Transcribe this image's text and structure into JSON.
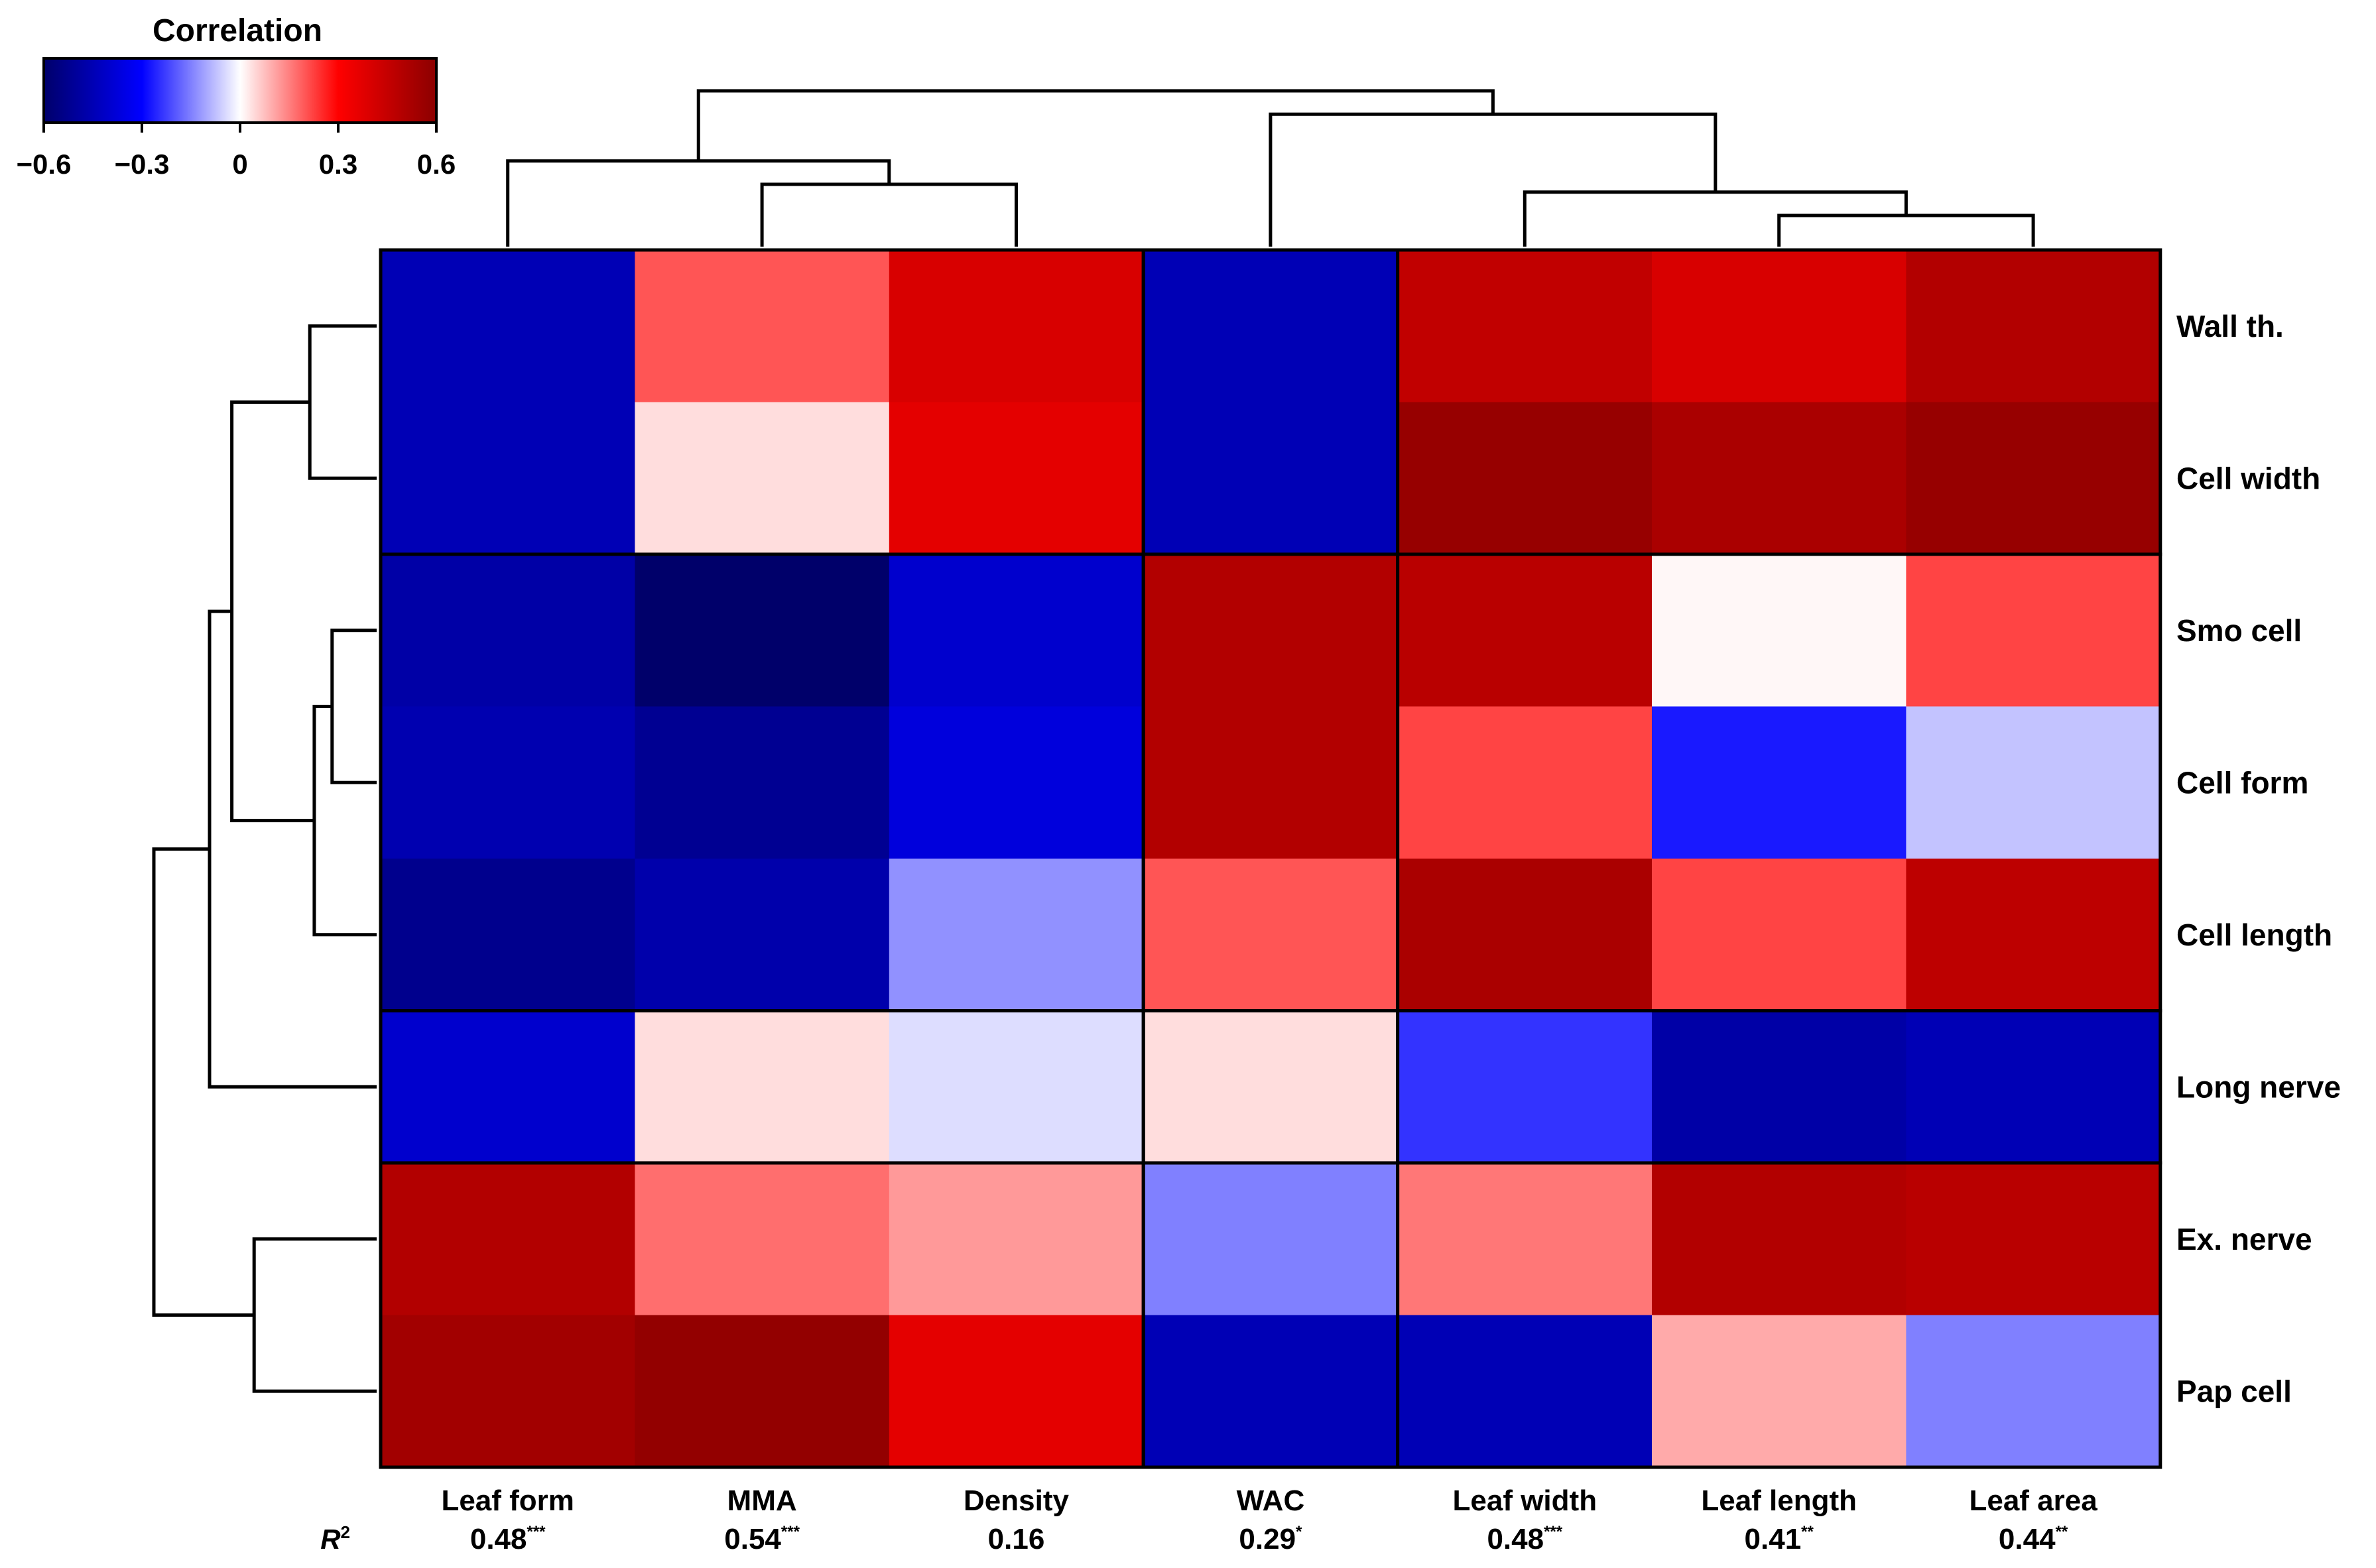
{
  "chart_data": {
    "type": "heatmap",
    "title": "",
    "legend": {
      "title": "Correlation",
      "ticks": [
        "−0.6",
        "−0.3",
        "0",
        "0.3",
        "0.6"
      ],
      "range": [
        -0.6,
        0.6
      ],
      "colors": {
        "low": "#00006a",
        "mid_low": "#0000ff",
        "zero": "#ffffff",
        "mid_high": "#ff0000",
        "high": "#8b0000"
      },
      "placement": "top-left"
    },
    "columns": [
      {
        "name": "Leaf form",
        "r2": "0.48",
        "sig": "***"
      },
      {
        "name": "MMA",
        "r2": "0.54",
        "sig": "***"
      },
      {
        "name": "Density",
        "r2": "0.16",
        "sig": ""
      },
      {
        "name": "WAC",
        "r2": "0.29",
        "sig": "*"
      },
      {
        "name": "Leaf width",
        "r2": "0.48",
        "sig": "***"
      },
      {
        "name": "Leaf length",
        "r2": "0.41",
        "sig": "**"
      },
      {
        "name": "Leaf area",
        "r2": "0.44",
        "sig": "**"
      }
    ],
    "r2_label": "R",
    "r2_superscript": "2",
    "rows": [
      "Wall th.",
      "Cell width",
      "Smo cell",
      "Cell form",
      "Cell length",
      "Long nerve",
      "Ex. nerve",
      "Pap cell"
    ],
    "values": [
      [
        -0.45,
        0.2,
        0.4,
        -0.45,
        0.46,
        0.4,
        0.5
      ],
      [
        -0.45,
        0.04,
        0.37,
        -0.45,
        0.57,
        0.52,
        0.57
      ],
      [
        -0.48,
        -0.6,
        -0.4,
        0.5,
        0.48,
        0.01,
        0.22
      ],
      [
        -0.46,
        -0.52,
        -0.37,
        0.5,
        0.22,
        -0.27,
        -0.07
      ],
      [
        -0.53,
        -0.47,
        -0.13,
        0.2,
        0.52,
        0.22,
        0.47
      ],
      [
        -0.4,
        0.04,
        -0.04,
        0.04,
        -0.24,
        -0.48,
        -0.45
      ],
      [
        0.5,
        0.17,
        0.12,
        -0.15,
        0.16,
        0.5,
        0.48
      ],
      [
        0.54,
        0.58,
        0.37,
        -0.45,
        -0.45,
        0.1,
        -0.15
      ]
    ],
    "row_groups": [
      [
        0,
        1
      ],
      [
        2,
        4
      ],
      [
        5,
        5
      ],
      [
        6,
        7
      ]
    ],
    "col_groups": [
      [
        0,
        2
      ],
      [
        3,
        3
      ],
      [
        4,
        6
      ]
    ],
    "col_dendrogram": {
      "leaf_order": [
        0,
        1,
        2,
        3,
        4,
        5,
        6
      ],
      "merges": [
        {
          "a": "5",
          "b": "6",
          "h": 0.2
        },
        {
          "a": "1",
          "b": "2",
          "h": 0.4
        },
        {
          "a": "4",
          "m": "5-6",
          "h": 0.35
        },
        {
          "a": "0",
          "m": "1-2",
          "h": 0.55
        },
        {
          "a": "3",
          "m": "4-6",
          "h": 0.85
        },
        {
          "m1": "0-2",
          "m2": "3-6",
          "h": 1.0
        }
      ]
    },
    "row_dendrogram": {
      "merges": [
        {
          "a": "2",
          "b": "3",
          "h": 0.2
        },
        {
          "a": "0",
          "b": "1",
          "h": 0.3
        },
        {
          "a": "4",
          "m": "2-3",
          "h": 0.28
        },
        {
          "a": "6",
          "b": "7",
          "h": 0.55
        },
        {
          "m1": "0-1",
          "m2": "2-4",
          "h": 0.65
        },
        {
          "a": "5",
          "m": "0-4",
          "h": 0.75
        },
        {
          "m1": "0-5",
          "m2": "6-7",
          "h": 1.0
        }
      ]
    }
  }
}
